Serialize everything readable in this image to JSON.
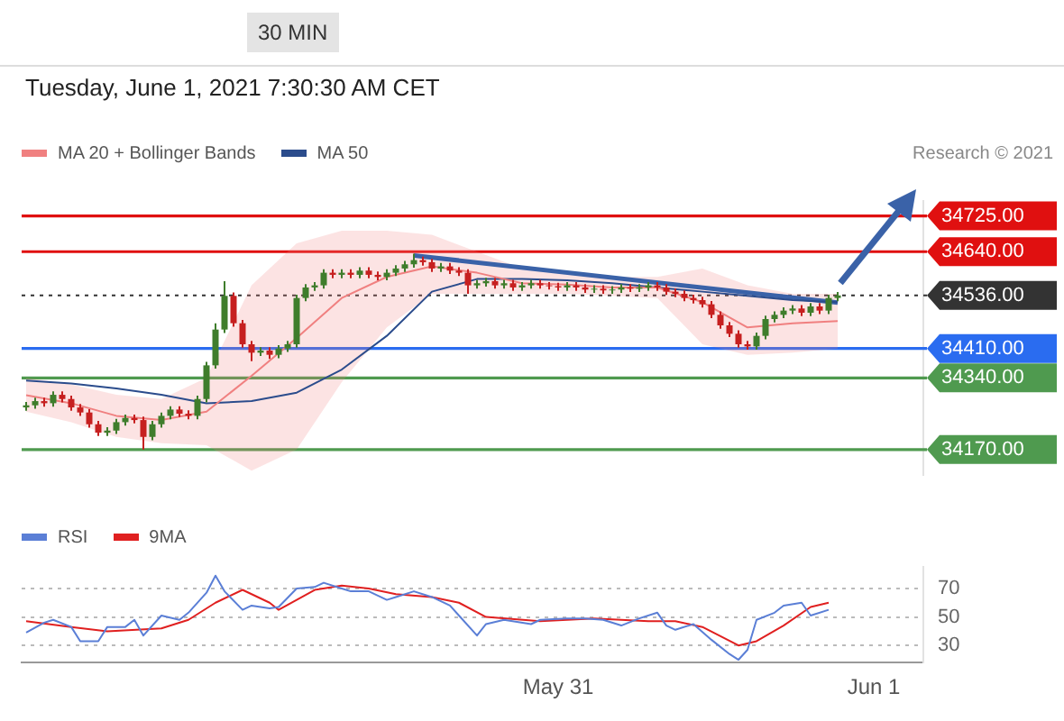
{
  "chart_data": [
    {
      "type": "candlestick",
      "subtitle": "Tuesday, June 1, 2021 7:30:30 AM CET",
      "annotations": [
        "30 MIN",
        "Research © 2021"
      ],
      "legend": "top left",
      "tick_labels": "y",
      "ylim": [
        34110,
        34760
      ],
      "yticks": [
        {
          "value": 34725,
          "label": "34725.00"
        },
        {
          "value": 34640,
          "label": "34640.00"
        },
        {
          "value": 34536,
          "label": "34536.00"
        },
        {
          "value": 34410,
          "label": "34410.00"
        },
        {
          "value": 34340,
          "label": "34340.00"
        },
        {
          "value": 34170,
          "label": "34170.00"
        }
      ],
      "categories": [
        null,
        null,
        null,
        null,
        null,
        null,
        null,
        null,
        null,
        null,
        null,
        null,
        null,
        null,
        null,
        null,
        null,
        null,
        null,
        null,
        null,
        null,
        null,
        null,
        null,
        null,
        null,
        null,
        null,
        null,
        null,
        null,
        null,
        null,
        null,
        null,
        null,
        null,
        null,
        null,
        null,
        null,
        null,
        null,
        null,
        null,
        null,
        null,
        null,
        null,
        null,
        null,
        null,
        null,
        null,
        null,
        null,
        null,
        null,
        null,
        null,
        null,
        null,
        null,
        null,
        null,
        null,
        null,
        null,
        null,
        null,
        null,
        null,
        null,
        null,
        null,
        null,
        null,
        null,
        null,
        null,
        null,
        null,
        null,
        null,
        null,
        null,
        null,
        null,
        null,
        null,
        null,
        null,
        null,
        null,
        null,
        null,
        null,
        null,
        null
      ],
      "ohlc": [
        [
          34270,
          34283,
          34262,
          34275
        ],
        [
          34275,
          34293,
          34267,
          34285
        ],
        [
          34285,
          34293,
          34272,
          34280
        ],
        [
          34280,
          34308,
          34272,
          34300
        ],
        [
          34300,
          34308,
          34282,
          34290
        ],
        [
          34290,
          34298,
          34262,
          34270
        ],
        [
          34270,
          34278,
          34250,
          34258
        ],
        [
          34258,
          34266,
          34222,
          34230
        ],
        [
          34230,
          34238,
          34202,
          34210
        ],
        [
          34210,
          34223,
          34202,
          34215
        ],
        [
          34215,
          34243,
          34207,
          34235
        ],
        [
          34235,
          34253,
          34227,
          34245
        ],
        [
          34245,
          34253,
          34232,
          34240
        ],
        [
          34240,
          34248,
          34170,
          34200
        ],
        [
          34200,
          34238,
          34192,
          34230
        ],
        [
          34230,
          34258,
          34222,
          34250
        ],
        [
          34250,
          34273,
          34242,
          34265
        ],
        [
          34265,
          34273,
          34247,
          34255
        ],
        [
          34255,
          34263,
          34242,
          34250
        ],
        [
          34250,
          34298,
          34242,
          34290
        ],
        [
          34290,
          34378,
          34282,
          34370
        ],
        [
          34370,
          34470,
          34362,
          34455
        ],
        [
          34455,
          34570,
          34447,
          34535
        ],
        [
          34535,
          34543,
          34462,
          34470
        ],
        [
          34470,
          34478,
          34412,
          34420
        ],
        [
          34420,
          34428,
          34380,
          34400
        ],
        [
          34400,
          34413,
          34392,
          34405
        ],
        [
          34405,
          34413,
          34385,
          34395
        ],
        [
          34395,
          34418,
          34387,
          34410
        ],
        [
          34410,
          34428,
          34402,
          34420
        ],
        [
          34420,
          34538,
          34412,
          34530
        ],
        [
          34530,
          34563,
          34522,
          34555
        ],
        [
          34555,
          34568,
          34547,
          34560
        ],
        [
          34560,
          34598,
          34552,
          34590
        ],
        [
          34590,
          34598,
          34577,
          34585
        ],
        [
          34585,
          34598,
          34577,
          34590
        ],
        [
          34590,
          34598,
          34577,
          34585
        ],
        [
          34585,
          34603,
          34577,
          34595
        ],
        [
          34595,
          34603,
          34577,
          34585
        ],
        [
          34585,
          34593,
          34572,
          34580
        ],
        [
          34580,
          34598,
          34572,
          34590
        ],
        [
          34590,
          34608,
          34582,
          34600
        ],
        [
          34600,
          34618,
          34592,
          34610
        ],
        [
          34610,
          34635,
          34602,
          34620
        ],
        [
          34620,
          34628,
          34607,
          34615
        ],
        [
          34615,
          34623,
          34592,
          34600
        ],
        [
          34600,
          34613,
          34592,
          34605
        ],
        [
          34605,
          34613,
          34587,
          34595
        ],
        [
          34595,
          34603,
          34582,
          34590
        ],
        [
          34590,
          34598,
          34540,
          34560
        ],
        [
          34560,
          34573,
          34552,
          34565
        ],
        [
          34565,
          34578,
          34557,
          34570
        ],
        [
          34570,
          34578,
          34552,
          34560
        ],
        [
          34560,
          34573,
          34552,
          34565
        ],
        [
          34565,
          34573,
          34547,
          34555
        ],
        [
          34555,
          34568,
          34547,
          34560
        ],
        [
          34560,
          34573,
          34552,
          34565
        ],
        [
          34565,
          34573,
          34552,
          34560
        ],
        [
          34560,
          34568,
          34550,
          34558
        ],
        [
          34558,
          34566,
          34547,
          34555
        ],
        [
          34555,
          34568,
          34547,
          34560
        ],
        [
          34560,
          34568,
          34547,
          34555
        ],
        [
          34555,
          34563,
          34542,
          34550
        ],
        [
          34550,
          34560,
          34542,
          34552
        ],
        [
          34552,
          34560,
          34540,
          34548
        ],
        [
          34548,
          34558,
          34540,
          34550
        ],
        [
          34550,
          34563,
          34542,
          34555
        ],
        [
          34555,
          34563,
          34544,
          34552
        ],
        [
          34552,
          34563,
          34544,
          34555
        ],
        [
          34555,
          34568,
          34547,
          34560
        ],
        [
          34560,
          34568,
          34547,
          34555
        ],
        [
          34555,
          34563,
          34537,
          34545
        ],
        [
          34545,
          34553,
          34532,
          34540
        ],
        [
          34540,
          34548,
          34522,
          34530
        ],
        [
          34530,
          34538,
          34517,
          34525
        ],
        [
          34525,
          34533,
          34507,
          34515
        ],
        [
          34515,
          34523,
          34482,
          34490
        ],
        [
          34490,
          34498,
          34457,
          34465
        ],
        [
          34465,
          34473,
          34437,
          34445
        ],
        [
          34445,
          34453,
          34412,
          34420
        ],
        [
          34420,
          34428,
          34407,
          34415
        ],
        [
          34415,
          34448,
          34407,
          34440
        ],
        [
          34440,
          34488,
          34432,
          34480
        ],
        [
          34480,
          34498,
          34472,
          34490
        ],
        [
          34490,
          34508,
          34482,
          34500
        ],
        [
          34500,
          34513,
          34492,
          34505
        ],
        [
          34505,
          34513,
          34487,
          34495
        ],
        [
          34495,
          34518,
          34487,
          34510
        ],
        [
          34510,
          34518,
          34492,
          34500
        ],
        [
          34500,
          34538,
          34492,
          34530
        ],
        [
          34530,
          34544,
          34522,
          34536
        ],
        null,
        null,
        null,
        null,
        null,
        null,
        null,
        null,
        null
      ],
      "series": [
        {
          "type": "line",
          "name": "MA 20 + Bollinger Bands",
          "color": "#f08080",
          "values": [
            34299,
            null,
            null,
            null,
            null,
            34280,
            null,
            null,
            null,
            null,
            34250,
            null,
            null,
            null,
            null,
            34240,
            null,
            null,
            null,
            null,
            34260,
            null,
            null,
            null,
            null,
            34345,
            null,
            null,
            null,
            null,
            34435,
            null,
            null,
            null,
            null,
            34530,
            null,
            null,
            null,
            null,
            34580,
            null,
            null,
            null,
            null,
            34605,
            null,
            null,
            null,
            null,
            34590,
            null,
            null,
            null,
            null,
            34565,
            null,
            null,
            null,
            null,
            34562,
            null,
            null,
            null,
            null,
            34555,
            null,
            null,
            null,
            null,
            34555,
            null,
            null,
            null,
            null,
            34520,
            null,
            null,
            null,
            null,
            34460,
            null,
            null,
            null,
            null,
            34470,
            null,
            null,
            null,
            null,
            34475,
            null,
            null,
            null,
            null,
            null,
            null,
            null,
            null,
            null
          ],
          "lower": [
            34260,
            null,
            null,
            null,
            null,
            34235,
            null,
            null,
            null,
            null,
            34200,
            null,
            null,
            null,
            null,
            34185,
            null,
            null,
            null,
            null,
            34180,
            null,
            null,
            null,
            null,
            34120,
            null,
            null,
            null,
            null,
            34170,
            null,
            null,
            null,
            null,
            34330,
            null,
            null,
            null,
            null,
            34460,
            null,
            null,
            null,
            null,
            34540,
            null,
            null,
            null,
            null,
            34540,
            null,
            null,
            null,
            null,
            34540,
            null,
            null,
            null,
            null,
            34540,
            null,
            null,
            null,
            null,
            34535,
            null,
            null,
            null,
            null,
            34530,
            null,
            null,
            null,
            null,
            34420,
            null,
            null,
            null,
            null,
            34395,
            null,
            null,
            null,
            null,
            34400,
            null,
            null,
            null,
            null,
            34410,
            null,
            null,
            null,
            null,
            null,
            null,
            null,
            null,
            null
          ],
          "upper": [
            34340,
            null,
            null,
            null,
            null,
            34325,
            null,
            null,
            null,
            null,
            34300,
            null,
            null,
            null,
            null,
            34290,
            null,
            null,
            null,
            null,
            34340,
            null,
            null,
            null,
            null,
            34560,
            null,
            null,
            null,
            null,
            34660,
            null,
            null,
            null,
            null,
            34690,
            null,
            null,
            null,
            null,
            34690,
            null,
            null,
            null,
            null,
            34680,
            null,
            null,
            null,
            null,
            34640,
            null,
            null,
            null,
            null,
            34600,
            null,
            null,
            null,
            null,
            34590,
            null,
            null,
            null,
            null,
            34580,
            null,
            null,
            null,
            null,
            34580,
            null,
            null,
            null,
            null,
            34600,
            null,
            null,
            null,
            null,
            34560,
            null,
            null,
            null,
            null,
            34540,
            null,
            null,
            null,
            null,
            34540,
            null,
            null,
            null,
            null,
            null,
            null,
            null,
            null,
            null
          ]
        },
        {
          "type": "line",
          "name": "MA 50",
          "color": "#2b4c8c",
          "values": [
            34334,
            null,
            null,
            null,
            null,
            34327,
            null,
            null,
            null,
            null,
            34315,
            null,
            null,
            null,
            null,
            34300,
            null,
            null,
            null,
            null,
            34280,
            null,
            null,
            null,
            null,
            34285,
            null,
            null,
            null,
            null,
            34305,
            null,
            null,
            null,
            null,
            34360,
            null,
            null,
            null,
            null,
            34440,
            null,
            null,
            null,
            null,
            34545,
            null,
            null,
            null,
            null,
            34575,
            null,
            null,
            null,
            null,
            34575,
            null,
            null,
            null,
            null,
            34572,
            null,
            null,
            null,
            null,
            34565,
            null,
            null,
            null,
            null,
            34555,
            null,
            null,
            null,
            null,
            34545,
            null,
            null,
            null,
            null,
            34535,
            null,
            null,
            null,
            null,
            34525,
            null,
            null,
            null,
            null,
            34520,
            null,
            null,
            null,
            null,
            null,
            null,
            null,
            null,
            null
          ]
        },
        {
          "type": "line",
          "color": "#3a62a8",
          "values": [
            null,
            null,
            null,
            null,
            null,
            null,
            null,
            null,
            null,
            null,
            null,
            null,
            null,
            null,
            null,
            null,
            null,
            null,
            null,
            null,
            null,
            null,
            null,
            null,
            null,
            null,
            null,
            null,
            null,
            null,
            null,
            null,
            null,
            null,
            null,
            null,
            null,
            null,
            null,
            null,
            null,
            null,
            null,
            34631,
            null,
            null,
            null,
            null,
            null,
            null,
            null,
            null,
            null,
            null,
            null,
            null,
            null,
            null,
            null,
            null,
            null,
            null,
            null,
            null,
            null,
            null,
            null,
            null,
            null,
            null,
            null,
            null,
            null,
            null,
            null,
            null,
            null,
            null,
            null,
            null,
            null,
            null,
            null,
            null,
            null,
            null,
            null,
            null,
            null,
            null,
            34519,
            null,
            null,
            null,
            null,
            null,
            null,
            null,
            null,
            null
          ]
        }
      ],
      "ref_lines": [
        {
          "axis": "y",
          "value": 34725,
          "color": "#e01010"
        },
        {
          "axis": "y",
          "value": 34640,
          "color": "#e01010"
        },
        {
          "axis": "y",
          "value": 34536,
          "color": "#333333",
          "line_style": "dotted"
        },
        {
          "axis": "y",
          "value": 34410,
          "color": "#2a6cf0"
        },
        {
          "axis": "y",
          "value": 34340,
          "color": "#4f9a4f"
        },
        {
          "axis": "y",
          "value": 34170,
          "color": "#4f9a4f"
        }
      ]
    },
    {
      "type": "line",
      "legend": "top left",
      "grid": "y",
      "ylim": [
        18,
        85
      ],
      "yticks": [
        30,
        50,
        70
      ],
      "categories": [
        null,
        null,
        null,
        null,
        null,
        null,
        null,
        null,
        null,
        null,
        null,
        null,
        null,
        null,
        null,
        null,
        null,
        null,
        null,
        null,
        null,
        null,
        null,
        null,
        null,
        null,
        null,
        null,
        null,
        null,
        null,
        null,
        null,
        null,
        null,
        null,
        null,
        null,
        null,
        null,
        null,
        null,
        null,
        null,
        null,
        null,
        null,
        null,
        null,
        null,
        null,
        null,
        null,
        null,
        null,
        null,
        null,
        null,
        null,
        "May 31",
        null,
        null,
        null,
        null,
        null,
        null,
        null,
        null,
        null,
        null,
        null,
        null,
        null,
        null,
        null,
        null,
        null,
        null,
        null,
        null,
        null,
        null,
        null,
        null,
        null,
        null,
        null,
        null,
        null,
        null,
        null,
        null,
        null,
        null,
        "Jun 1",
        null,
        null,
        null,
        null,
        null
      ],
      "series": [
        {
          "name": "RSI",
          "color": "#5b7fd6",
          "values": [
            39,
            null,
            46,
            48,
            null,
            43,
            33,
            null,
            33,
            43,
            null,
            43,
            48,
            37,
            null,
            51,
            null,
            48,
            53,
            null,
            67,
            79,
            68,
            null,
            55,
            58,
            null,
            56,
            57,
            null,
            70,
            null,
            71,
            74,
            null,
            70,
            68,
            null,
            68,
            null,
            62,
            64,
            null,
            68,
            null,
            64,
            null,
            58,
            51,
            null,
            37,
            45,
            null,
            48,
            null,
            null,
            45,
            48,
            null,
            null,
            49,
            null,
            49,
            null,
            48,
            null,
            44,
            null,
            49,
            null,
            53,
            44,
            41,
            null,
            45,
            null,
            34,
            null,
            24,
            20,
            27,
            48,
            null,
            53,
            58,
            null,
            60,
            51,
            null,
            55,
            null,
            null,
            null,
            null,
            null,
            null,
            null,
            null,
            null,
            null
          ]
        },
        {
          "name": "9MA",
          "color": "#e02020",
          "values": [
            47,
            null,
            null,
            null,
            null,
            43,
            null,
            null,
            null,
            40,
            null,
            null,
            null,
            null,
            null,
            42,
            null,
            null,
            48,
            null,
            null,
            60,
            null,
            null,
            69,
            null,
            null,
            60,
            55,
            null,
            null,
            null,
            69,
            null,
            null,
            72,
            null,
            null,
            70,
            null,
            null,
            66,
            null,
            null,
            null,
            64,
            null,
            null,
            60,
            null,
            null,
            50,
            null,
            null,
            null,
            null,
            null,
            47,
            null,
            null,
            null,
            null,
            null,
            49,
            null,
            null,
            null,
            null,
            null,
            47,
            null,
            null,
            47,
            null,
            null,
            43,
            null,
            null,
            null,
            30,
            null,
            33,
            null,
            null,
            44,
            null,
            null,
            57,
            null,
            60,
            null,
            null,
            null,
            null,
            null,
            null,
            null,
            null,
            null,
            null
          ]
        }
      ]
    }
  ]
}
